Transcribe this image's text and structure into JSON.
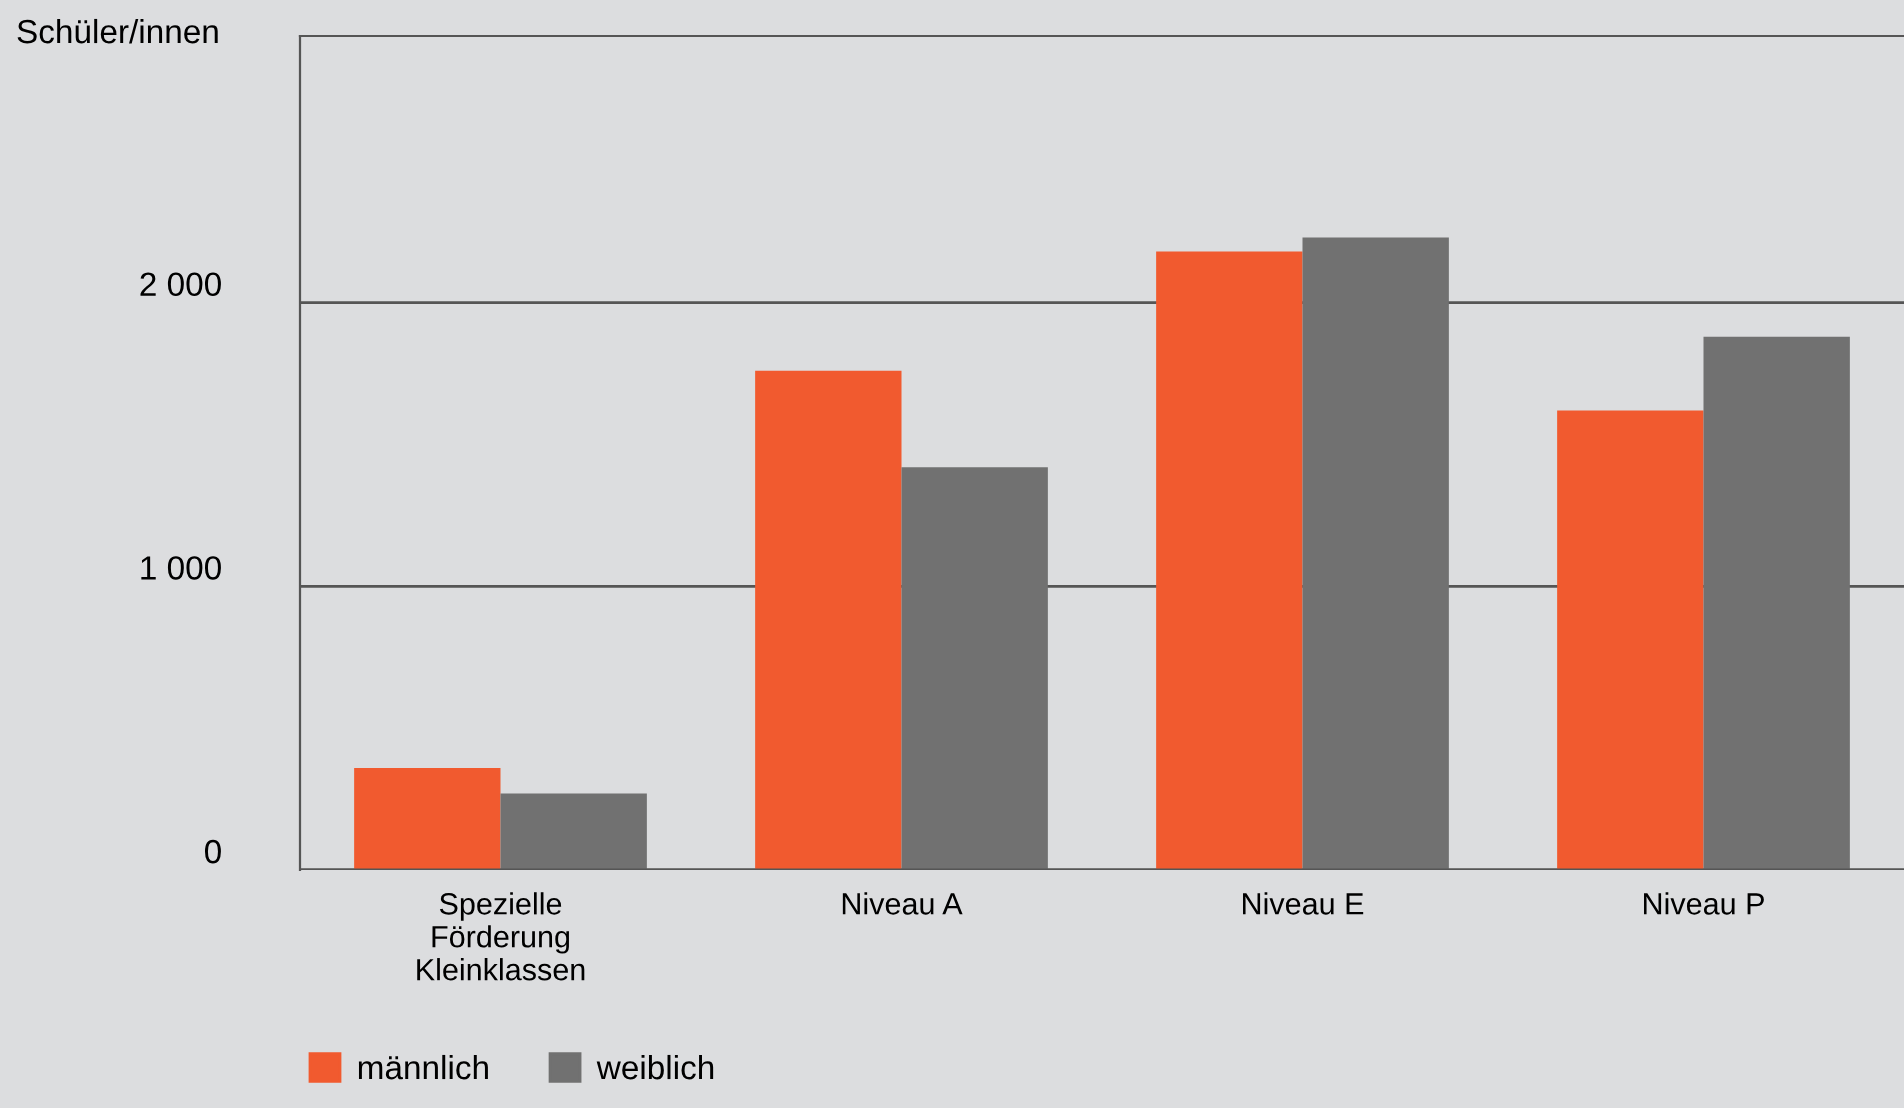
{
  "chart_data": {
    "type": "bar",
    "ylabel": "Schüler/innen",
    "categories": [
      "Spezielle\nFörderung\nKleinklassen",
      "Niveau A",
      "Niveau E",
      "Niveau P"
    ],
    "series": [
      {
        "name": "männlich",
        "color": "#f15a2f",
        "values": [
          360,
          1760,
          2180,
          1620
        ]
      },
      {
        "name": "weiblich",
        "color": "#717171",
        "values": [
          270,
          1420,
          2230,
          1880
        ]
      }
    ],
    "ylim": [
      0,
      2940
    ],
    "yticks": [
      0,
      {
        "value": 1000,
        "label": "1 000"
      },
      {
        "value": 2000,
        "label": "2 000"
      }
    ],
    "grid": "y",
    "legend": "bottom left"
  }
}
